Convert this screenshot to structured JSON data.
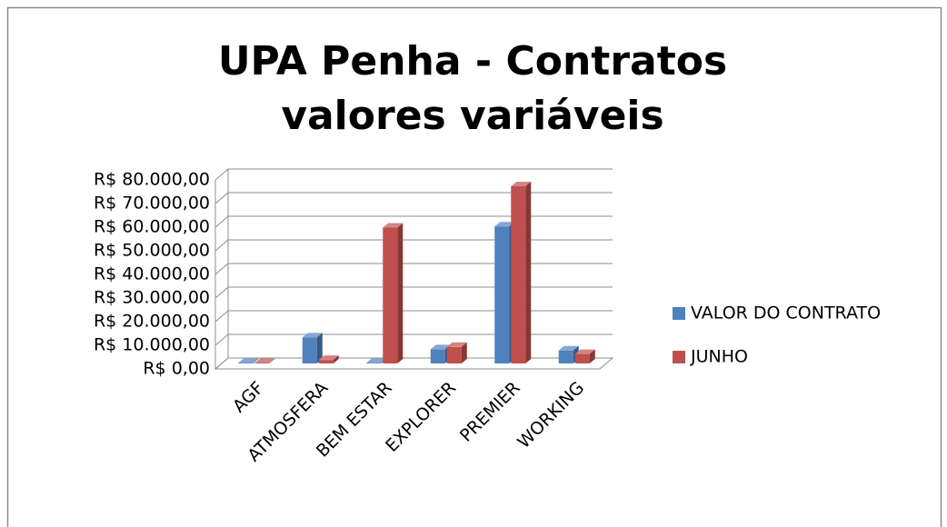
{
  "chart_data": {
    "type": "bar3d",
    "title": "UPA Penha - Contratos valores variáveis",
    "categories": [
      "AGF",
      "ATMOSFERA",
      "BEM ESTAR",
      "EXPLORER",
      "PREMIER",
      "WORKING"
    ],
    "series": [
      {
        "name": "VALOR DO CONTRATO",
        "color": "#4f81bd",
        "values": [
          300,
          11000,
          300,
          6000,
          58000,
          5500
        ]
      },
      {
        "name": "JUNHO",
        "color": "#c0504d",
        "values": [
          200,
          1500,
          57500,
          7000,
          75000,
          4000
        ]
      }
    ],
    "ylim": [
      0,
      80000
    ],
    "yticks": [
      {
        "value": 0,
        "label": "R$ 0,00"
      },
      {
        "value": 10000,
        "label": "R$ 10.000,00"
      },
      {
        "value": 20000,
        "label": "R$ 20.000,00"
      },
      {
        "value": 30000,
        "label": "R$ 30.000,00"
      },
      {
        "value": 40000,
        "label": "R$ 40.000,00"
      },
      {
        "value": 50000,
        "label": "R$ 50.000,00"
      },
      {
        "value": 60000,
        "label": "R$ 60.000,00"
      },
      {
        "value": 70000,
        "label": "R$ 70.000,00"
      },
      {
        "value": 80000,
        "label": "R$ 80.000,00"
      }
    ],
    "grid": true,
    "legend": "right"
  }
}
